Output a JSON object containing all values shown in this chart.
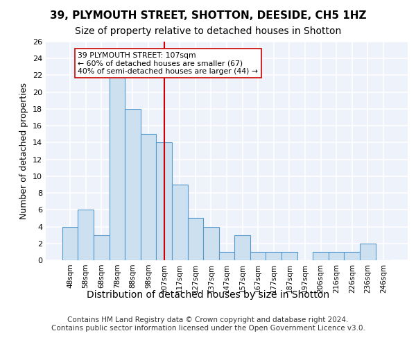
{
  "title": "39, PLYMOUTH STREET, SHOTTON, DEESIDE, CH5 1HZ",
  "subtitle": "Size of property relative to detached houses in Shotton",
  "xlabel": "Distribution of detached houses by size in Shotton",
  "ylabel": "Number of detached properties",
  "categories": [
    "48sqm",
    "58sqm",
    "68sqm",
    "78sqm",
    "88sqm",
    "98sqm",
    "107sqm",
    "117sqm",
    "127sqm",
    "137sqm",
    "147sqm",
    "157sqm",
    "167sqm",
    "177sqm",
    "187sqm",
    "197sqm",
    "206sqm",
    "216sqm",
    "226sqm",
    "236sqm",
    "246sqm"
  ],
  "values": [
    4,
    6,
    3,
    22,
    18,
    15,
    14,
    9,
    5,
    4,
    1,
    3,
    1,
    1,
    1,
    0,
    1,
    1,
    1,
    2,
    0
  ],
  "bar_color": "#cce0f0",
  "bar_edge_color": "#5599cc",
  "vline_x_index": 6,
  "vline_color": "#cc0000",
  "annotation_text": "39 PLYMOUTH STREET: 107sqm\n← 60% of detached houses are smaller (67)\n40% of semi-detached houses are larger (44) →",
  "annotation_box_color": "#ffffff",
  "annotation_box_edge": "#cc0000",
  "ylim": [
    0,
    26
  ],
  "yticks": [
    0,
    2,
    4,
    6,
    8,
    10,
    12,
    14,
    16,
    18,
    20,
    22,
    24,
    26
  ],
  "background_color": "#eef2fb",
  "grid_color": "#ffffff",
  "footer": "Contains HM Land Registry data © Crown copyright and database right 2024.\nContains public sector information licensed under the Open Government Licence v3.0.",
  "title_fontsize": 11,
  "subtitle_fontsize": 10,
  "xlabel_fontsize": 10,
  "ylabel_fontsize": 9,
  "footer_fontsize": 7.5
}
